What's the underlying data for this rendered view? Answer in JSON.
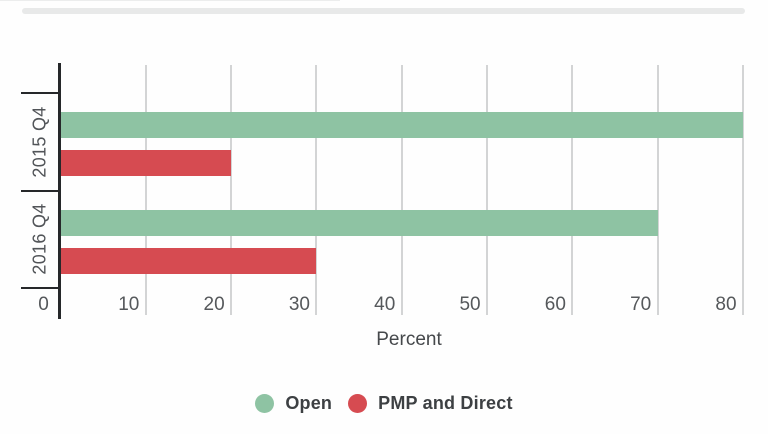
{
  "chart_data": {
    "type": "bar",
    "orientation": "horizontal",
    "categories": [
      "2015 Q4",
      "2016 Q4"
    ],
    "series": [
      {
        "name": "Open",
        "color": "#8ec3a3",
        "values": [
          80,
          70
        ]
      },
      {
        "name": "PMP and Direct",
        "color": "#d64b51",
        "values": [
          20,
          30
        ]
      }
    ],
    "xlabel": "Percent",
    "xlim": [
      0,
      80
    ],
    "x_ticks": [
      0,
      10,
      20,
      30,
      40,
      50,
      60,
      70,
      80
    ],
    "grid": true,
    "legend_position": "bottom",
    "colors": {
      "axis": "#26282a",
      "gridline": "#d3d4d5",
      "tick_label": "#55585b",
      "category_label": "#515458",
      "axis_title": "#45484b",
      "legend_label": "#3d4043",
      "top_strip": "#e8e9e9"
    }
  }
}
